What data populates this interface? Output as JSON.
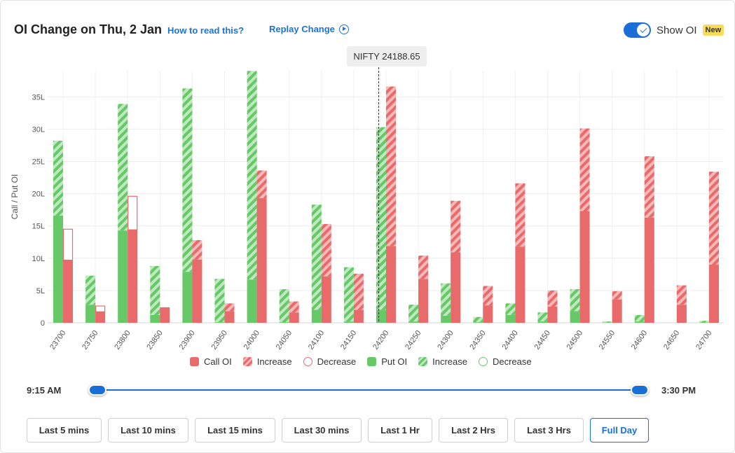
{
  "header": {
    "title": "OI Change on Thu, 2 Jan",
    "how_to_read": "How to read this?",
    "replay": "Replay Change",
    "toggle_label": "Show OI",
    "new_badge": "New"
  },
  "tooltip": "NIFTY 24188.65",
  "legend": [
    "Call OI",
    "Increase",
    "Decrease",
    "Put OI",
    "Increase",
    "Decrease"
  ],
  "slider": {
    "start": "9:15 AM",
    "end": "3:30 PM"
  },
  "buttons": [
    "Last 5 mins",
    "Last 10 mins",
    "Last 15 mins",
    "Last 30 mins",
    "Last 1 Hr",
    "Last 2 Hrs",
    "Last 3 Hrs",
    "Full Day"
  ],
  "active_button": "Full Day",
  "colors": {
    "call": "#e96a6a",
    "call_light": "#f6b9b9",
    "put": "#66c866",
    "put_light": "#bfe9bf",
    "accent": "#1a6ed8"
  },
  "chart_data": {
    "type": "bar",
    "ylabel": "Call / Put OI",
    "y_ticks": [
      "0",
      "5L",
      "10L",
      "15L",
      "20L",
      "25L",
      "30L",
      "35L"
    ],
    "ylim": [
      0,
      39
    ],
    "spot": 24188.65,
    "categories": [
      "23700",
      "23750",
      "23800",
      "23850",
      "23900",
      "23950",
      "24000",
      "24050",
      "24100",
      "24150",
      "24200",
      "24250",
      "24300",
      "24350",
      "24400",
      "24450",
      "24500",
      "24550",
      "24600",
      "24650",
      "24700"
    ],
    "put_oi": [
      16.6,
      2.8,
      14.3,
      1.2,
      7.9,
      0.1,
      6.7,
      0.1,
      2.0,
      0.2,
      2.0,
      0.2,
      1.1,
      0.1,
      1.2,
      0.2,
      1.8,
      0.05,
      0.2,
      0,
      0.05
    ],
    "put_total": [
      28.2,
      7.3,
      33.9,
      8.8,
      36.3,
      6.8,
      39.0,
      5.2,
      18.3,
      8.6,
      30.3,
      2.8,
      6.1,
      0.9,
      3.0,
      1.6,
      5.2,
      0.2,
      1.2,
      0,
      0.3
    ],
    "call_oi": [
      9.7,
      1.7,
      14.4,
      2.4,
      9.8,
      1.8,
      19.3,
      1.6,
      7.2,
      2.0,
      11.9,
      6.8,
      10.9,
      2.7,
      11.8,
      2.5,
      17.3,
      3.6,
      16.3,
      2.8,
      9.0
    ],
    "call_total": [
      14.5,
      2.6,
      19.6,
      2.4,
      12.8,
      3.0,
      23.6,
      3.3,
      15.3,
      7.6,
      36.6,
      10.4,
      18.9,
      5.7,
      21.6,
      5.0,
      30.1,
      4.9,
      25.8,
      5.8,
      23.4
    ]
  }
}
